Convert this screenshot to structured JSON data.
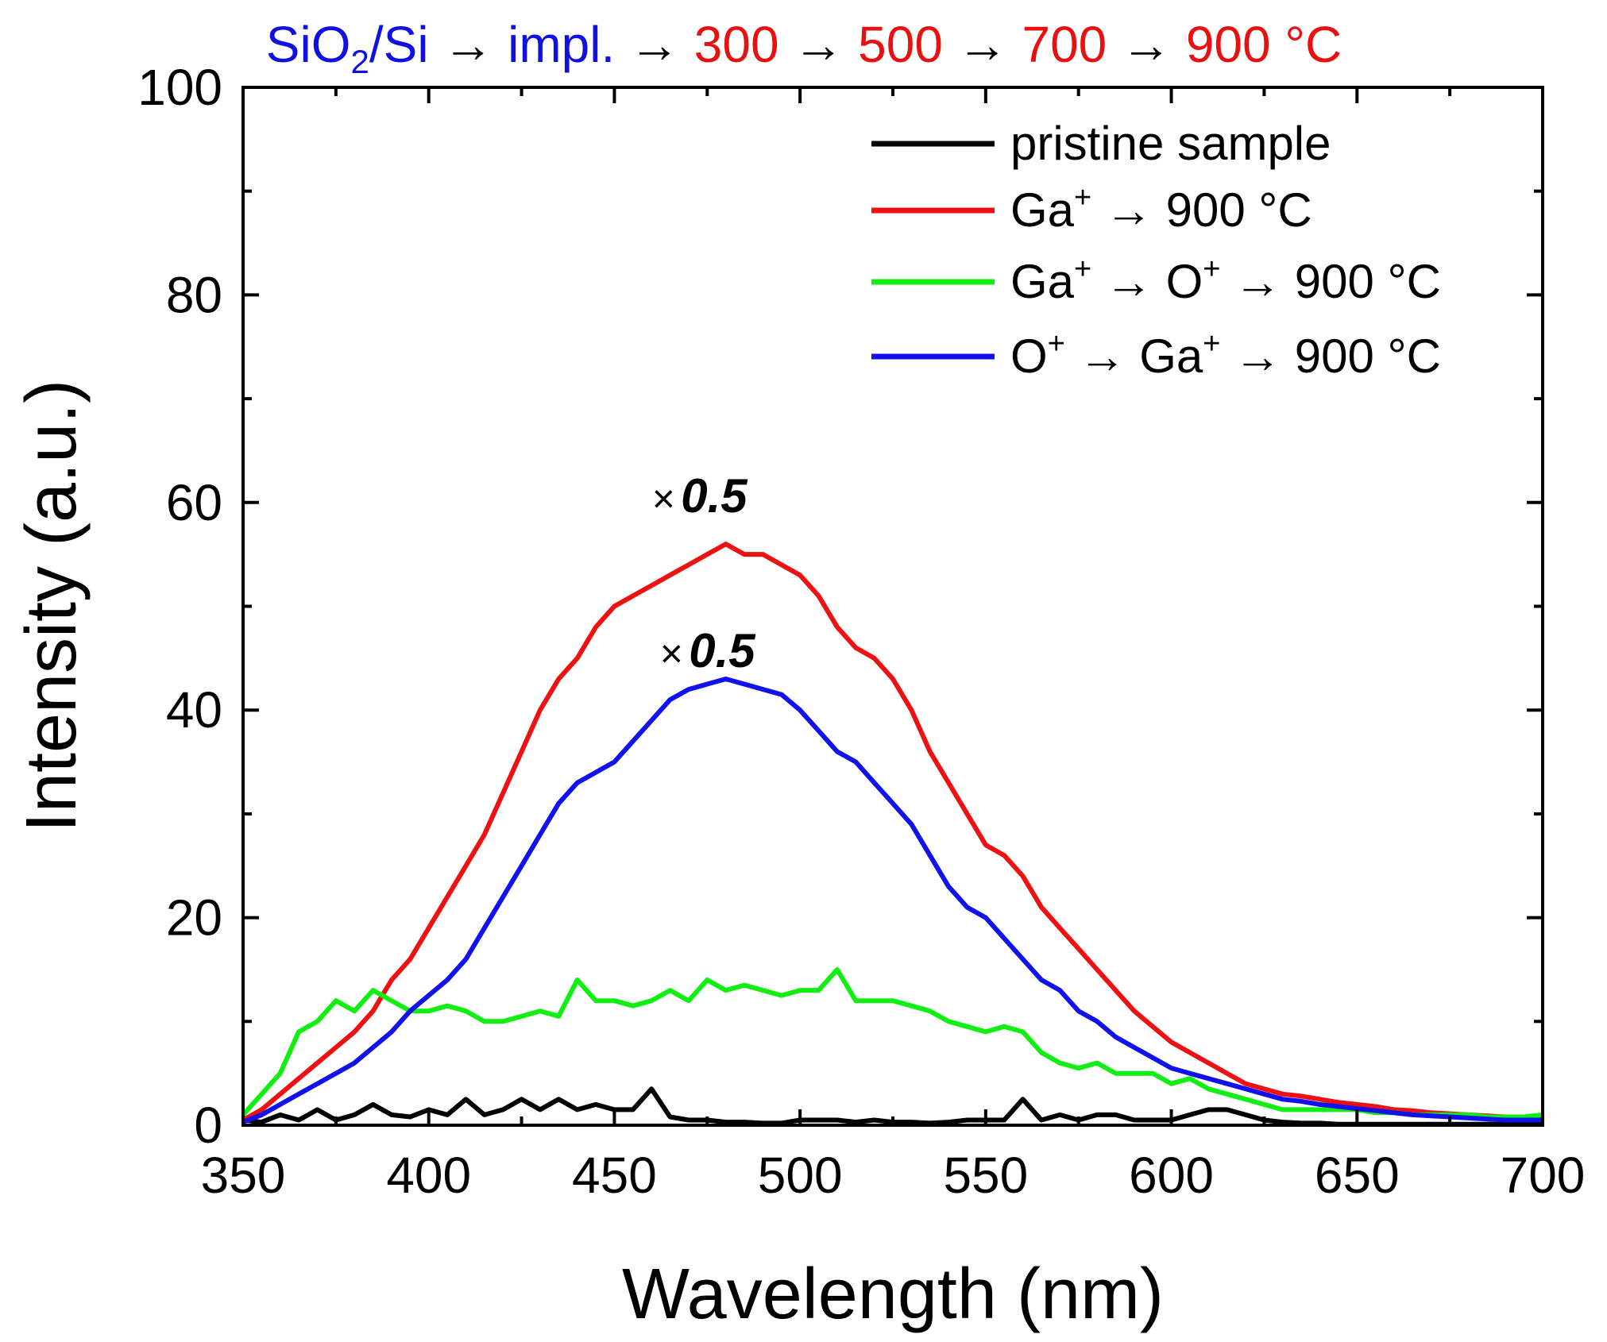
{
  "chart_data": {
    "type": "line",
    "title_parts": [
      {
        "text": "SiO",
        "color": "#1010e0"
      },
      {
        "text": "2",
        "color": "#1010e0",
        "sub": true
      },
      {
        "text": "/Si",
        "color": "#1010e0"
      },
      {
        "text": " → ",
        "color": "#000000"
      },
      {
        "text": "impl.",
        "color": "#1010e0"
      },
      {
        "text": " → ",
        "color": "#000000"
      },
      {
        "text": "300",
        "color": "#e81010"
      },
      {
        "text": " → ",
        "color": "#000000"
      },
      {
        "text": "500",
        "color": "#e81010"
      },
      {
        "text": " → ",
        "color": "#000000"
      },
      {
        "text": "700",
        "color": "#e81010"
      },
      {
        "text": " → ",
        "color": "#000000"
      },
      {
        "text": "900 °C",
        "color": "#e81010"
      }
    ],
    "xlabel": "Wavelength (nm)",
    "ylabel": "Intensity (a.u.)",
    "xlim": [
      350,
      700
    ],
    "ylim": [
      0,
      100
    ],
    "xticks": [
      350,
      400,
      450,
      500,
      550,
      600,
      650,
      700
    ],
    "yticks": [
      0,
      20,
      40,
      60,
      80,
      100
    ],
    "grid": false,
    "legend_position": "top-right",
    "annotations": [
      {
        "prefix": "×",
        "text": "0.5",
        "series": "Ga+ → 900 °C"
      },
      {
        "prefix": "×",
        "text": "0.5",
        "series": "O+ → Ga+ → 900 °C"
      }
    ],
    "x_step": 5,
    "x_start": 350,
    "series": [
      {
        "name": "pristine sample",
        "legend_parts": [
          {
            "t": "pristine sample"
          }
        ],
        "color": "#000000",
        "values": [
          0.5,
          0.3,
          1,
          0.5,
          1.5,
          0.5,
          1,
          2,
          1,
          0.8,
          1.5,
          1,
          2.5,
          1,
          1.5,
          2.5,
          1.5,
          2.5,
          1.5,
          2,
          1.5,
          1.5,
          3.5,
          0.8,
          0.5,
          0.5,
          0.3,
          0.3,
          0.2,
          0.2,
          0.5,
          0.5,
          0.5,
          0.3,
          0.5,
          0.3,
          0.3,
          0.2,
          0.3,
          0.5,
          0.5,
          0.5,
          2.5,
          0.5,
          1,
          0.5,
          1,
          1,
          0.5,
          0.5,
          0.5,
          1,
          1.5,
          1.5,
          1,
          0.5,
          0.3,
          0.2,
          0.2,
          0.1,
          0.1,
          0.1,
          0.1,
          0.1,
          0.1,
          0.1,
          0.1,
          0.1,
          0.1,
          0.1,
          0.1
        ]
      },
      {
        "name": "Ga+ → 900 °C",
        "legend_parts": [
          {
            "t": "Ga"
          },
          {
            "t": "+",
            "sup": true
          },
          {
            "t": " → 900 °C"
          }
        ],
        "color": "#ee1111",
        "values": [
          0.5,
          1.5,
          3,
          4.5,
          6,
          7.5,
          9,
          11,
          14,
          16,
          19,
          22,
          25,
          28,
          32,
          36,
          40,
          43,
          45,
          48,
          50,
          51,
          52,
          53,
          54,
          55,
          56,
          55,
          55,
          54,
          53,
          51,
          48,
          46,
          45,
          43,
          40,
          36,
          33,
          30,
          27,
          26,
          24,
          21,
          19,
          17,
          15,
          13,
          11,
          9.5,
          8,
          7,
          6,
          5,
          4,
          3.5,
          3,
          2.8,
          2.5,
          2.2,
          2,
          1.8,
          1.5,
          1.4,
          1.2,
          1.1,
          1,
          0.9,
          0.8,
          0.8,
          0.8
        ]
      },
      {
        "name": "Ga+ → O+ → 900 °C",
        "legend_parts": [
          {
            "t": "Ga"
          },
          {
            "t": "+",
            "sup": true
          },
          {
            "t": " → O"
          },
          {
            "t": "+",
            "sup": true
          },
          {
            "t": " → 900 °C"
          }
        ],
        "color": "#11ee11",
        "values": [
          1,
          3,
          5,
          9,
          10,
          12,
          11,
          13,
          12,
          11,
          11,
          11.5,
          11,
          10,
          10,
          10.5,
          11,
          10.5,
          14,
          12,
          12,
          11.5,
          12,
          13,
          12,
          14,
          13,
          13.5,
          13,
          12.5,
          13,
          13,
          15,
          12,
          12,
          12,
          11.5,
          11,
          10,
          9.5,
          9,
          9.5,
          9,
          7,
          6,
          5.5,
          6,
          5,
          5,
          5,
          4,
          4.5,
          3.5,
          3,
          2.5,
          2,
          1.5,
          1.5,
          1.5,
          1.5,
          1.5,
          1.2,
          1.2,
          1,
          1,
          1,
          1,
          0.8,
          0.8,
          0.8,
          1
        ]
      },
      {
        "name": "O+ → Ga+ → 900 °C",
        "legend_parts": [
          {
            "t": "O"
          },
          {
            "t": "+",
            "sup": true
          },
          {
            "t": " → Ga"
          },
          {
            "t": "+",
            "sup": true
          },
          {
            "t": " → 900 °C"
          }
        ],
        "color": "#1111ee",
        "values": [
          0.3,
          1,
          2,
          3,
          4,
          5,
          6,
          7.5,
          9,
          11,
          12.5,
          14,
          16,
          19,
          22,
          25,
          28,
          31,
          33,
          34,
          35,
          37,
          39,
          41,
          42,
          42.5,
          43,
          42.5,
          42,
          41.5,
          40,
          38,
          36,
          35,
          33,
          31,
          29,
          26,
          23,
          21,
          20,
          18,
          16,
          14,
          13,
          11,
          10,
          8.5,
          7.5,
          6.5,
          5.5,
          5,
          4.5,
          4,
          3.5,
          3,
          2.5,
          2.3,
          2,
          1.8,
          1.6,
          1.4,
          1.2,
          1,
          0.9,
          0.8,
          0.7,
          0.6,
          0.5,
          0.5,
          0.5
        ]
      }
    ]
  }
}
